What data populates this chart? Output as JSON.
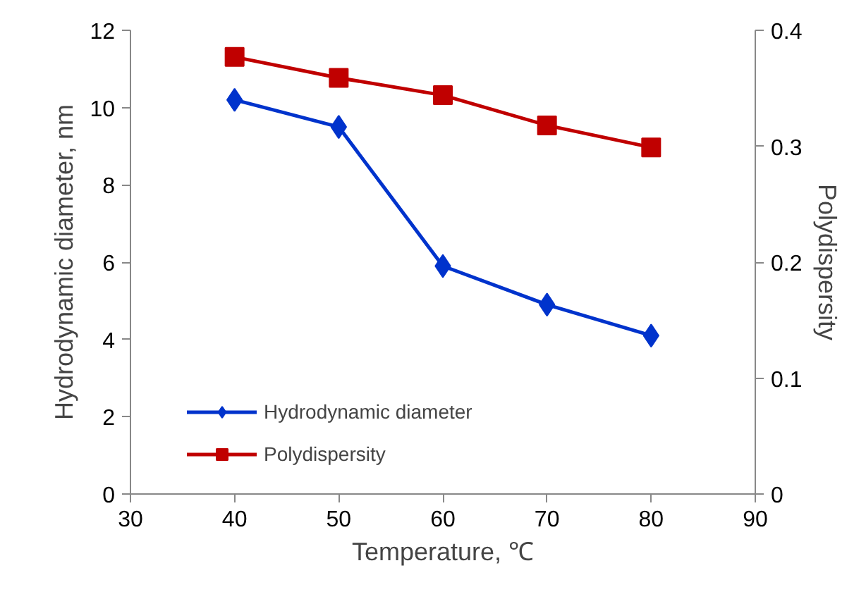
{
  "chart_data": {
    "type": "line",
    "xlabel": "Temperature, ℃",
    "ylabel": "Hydrodynamic diameter, nm",
    "y2label": "Polydispersity",
    "x": [
      40,
      50,
      60,
      70,
      80
    ],
    "series": [
      {
        "name": "Hydrodynamic diameter",
        "color": "#0033cc",
        "marker": "diamond",
        "values": [
          10.2,
          9.5,
          5.9,
          4.9,
          4.1
        ]
      },
      {
        "name": "Polydispersity",
        "color": "#c00000",
        "marker": "square",
        "axis": "y2",
        "values": [
          0.377,
          0.359,
          0.344,
          0.318,
          0.299
        ]
      }
    ],
    "xlim": [
      30,
      90
    ],
    "xticks": [
      30,
      40,
      50,
      60,
      70,
      80,
      90
    ],
    "ylim": [
      0,
      12
    ],
    "yticks": [
      0,
      2,
      4,
      6,
      8,
      10,
      12
    ],
    "y2lim": [
      0,
      0.4
    ],
    "y2ticks": [
      0,
      0.1,
      0.2,
      0.3,
      0.4
    ],
    "grid": false,
    "legend": "bottom left",
    "line_style": "solid"
  }
}
